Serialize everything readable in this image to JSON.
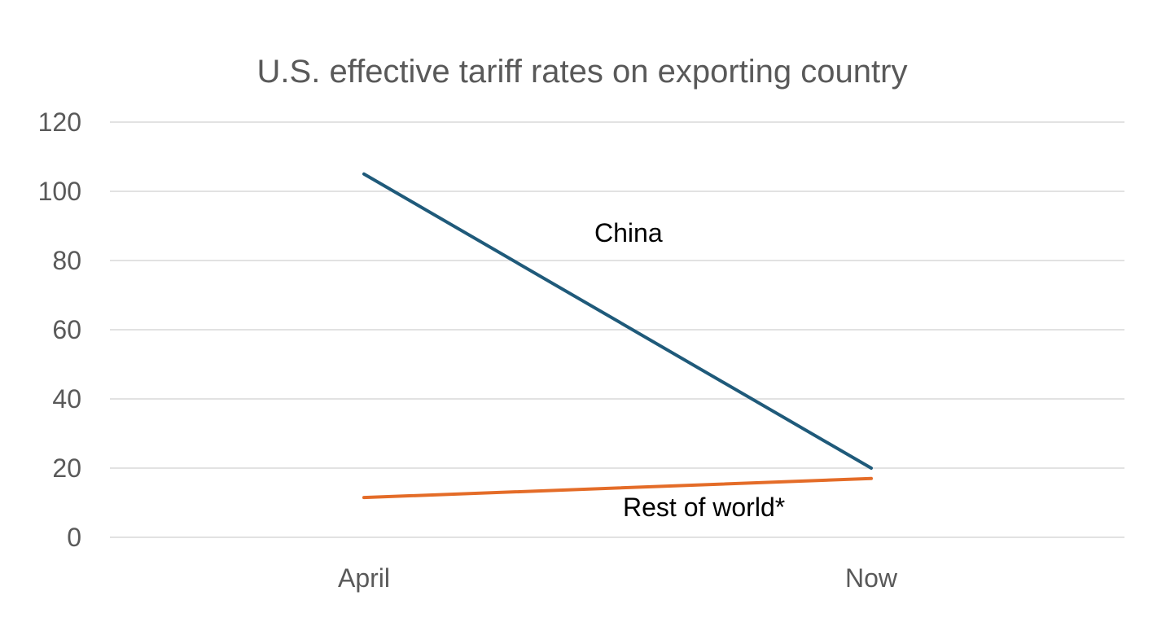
{
  "chart_data": {
    "type": "line",
    "title": "U.S. effective tariff rates on exporting country",
    "categories": [
      "April",
      "Now"
    ],
    "series": [
      {
        "name": "China",
        "values": [
          105,
          20
        ],
        "color": "#1f5a7a"
      },
      {
        "name": "Rest of world*",
        "values": [
          11.5,
          17
        ],
        "color": "#e46c28"
      }
    ],
    "ylim": [
      0,
      120
    ],
    "yticks": [
      0,
      20,
      40,
      60,
      80,
      100,
      120
    ],
    "ytick_labels": [
      "0",
      "20",
      "40",
      "60",
      "80",
      "100",
      "120"
    ],
    "grid": true,
    "legend": "inline labels",
    "xlabel": "",
    "ylabel": ""
  }
}
